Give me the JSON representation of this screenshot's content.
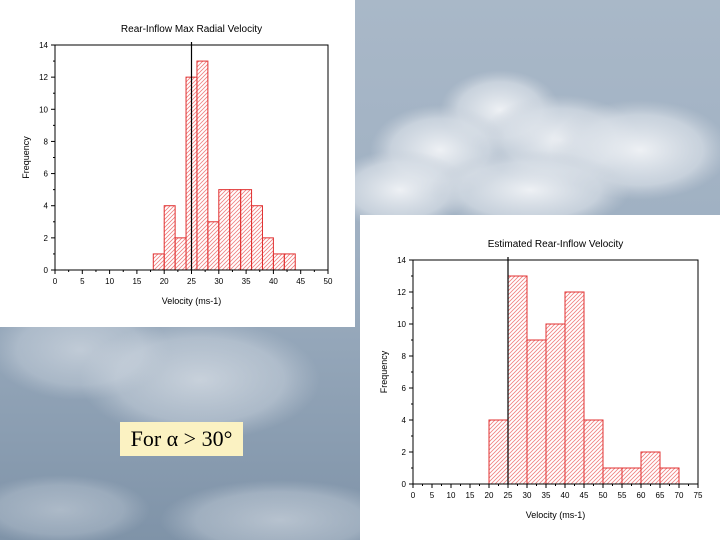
{
  "caption": {
    "text": "For α > 30°"
  },
  "colors": {
    "bar_stroke": "#e03030",
    "hatch": "#f08080",
    "marker": "#000000"
  },
  "chart_data": [
    {
      "type": "bar",
      "title": "Rear-Inflow Max Radial Velocity",
      "xlabel": "Velocity (ms-1)",
      "ylabel": "Frequency",
      "xlim": [
        0,
        50
      ],
      "ylim": [
        0,
        14
      ],
      "xticks": [
        0,
        5,
        10,
        15,
        20,
        25,
        30,
        35,
        40,
        45,
        50
      ],
      "yticks": [
        0,
        2,
        4,
        6,
        8,
        10,
        12,
        14
      ],
      "bin_width": 2,
      "bins": [
        {
          "x0": 18,
          "count": 1
        },
        {
          "x0": 20,
          "count": 4
        },
        {
          "x0": 22,
          "count": 2
        },
        {
          "x0": 24,
          "count": 12
        },
        {
          "x0": 26,
          "count": 13
        },
        {
          "x0": 28,
          "count": 3
        },
        {
          "x0": 30,
          "count": 5
        },
        {
          "x0": 32,
          "count": 5
        },
        {
          "x0": 34,
          "count": 5
        },
        {
          "x0": 36,
          "count": 4
        },
        {
          "x0": 38,
          "count": 2
        },
        {
          "x0": 40,
          "count": 1
        },
        {
          "x0": 42,
          "count": 1
        }
      ],
      "marker_line_x": 25
    },
    {
      "type": "bar",
      "title": "Estimated Rear-Inflow Velocity",
      "xlabel": "Velocity (ms-1)",
      "ylabel": "Frequency",
      "xlim": [
        0,
        75
      ],
      "ylim": [
        0,
        14
      ],
      "xticks": [
        0,
        5,
        10,
        15,
        20,
        25,
        30,
        35,
        40,
        45,
        50,
        55,
        60,
        65,
        70,
        75
      ],
      "yticks": [
        0,
        2,
        4,
        6,
        8,
        10,
        12,
        14
      ],
      "bin_width": 5,
      "bins": [
        {
          "x0": 20,
          "count": 4
        },
        {
          "x0": 25,
          "count": 13
        },
        {
          "x0": 30,
          "count": 9
        },
        {
          "x0": 35,
          "count": 10
        },
        {
          "x0": 40,
          "count": 12
        },
        {
          "x0": 45,
          "count": 4
        },
        {
          "x0": 50,
          "count": 1
        },
        {
          "x0": 55,
          "count": 1
        },
        {
          "x0": 60,
          "count": 2
        },
        {
          "x0": 65,
          "count": 1
        }
      ],
      "marker_line_x": 25
    }
  ]
}
